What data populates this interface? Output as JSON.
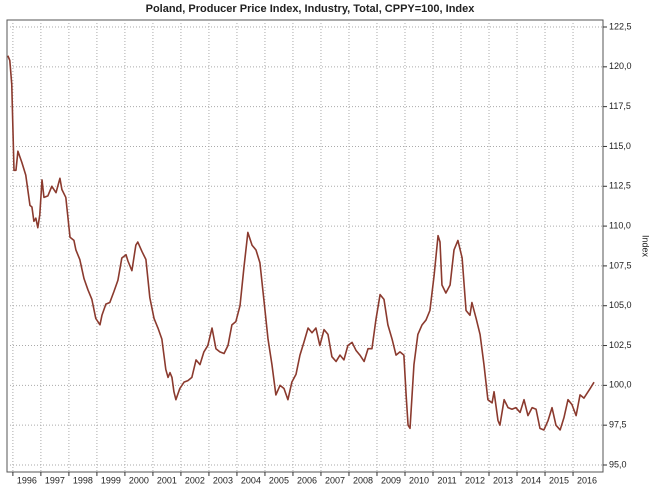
{
  "chart_data": {
    "type": "line",
    "title": "Poland, Producer Price Index, Industry, Total, CPPY=100, Index",
    "y_label": "Index",
    "xlim": [
      1995.79,
      2017.07
    ],
    "ylim": [
      94.56,
      122.94
    ],
    "xticks": [
      1996,
      1997,
      1998,
      1999,
      2000,
      2001,
      2002,
      2003,
      2004,
      2005,
      2006,
      2007,
      2008,
      2009,
      2010,
      2011,
      2012,
      2013,
      2014,
      2015,
      2016
    ],
    "yticks": [
      {
        "value": 95,
        "label": "95,0"
      },
      {
        "value": 97.5,
        "label": "97,5"
      },
      {
        "value": 100,
        "label": "100,0"
      },
      {
        "value": 102.5,
        "label": "102,5"
      },
      {
        "value": 105,
        "label": "105,0"
      },
      {
        "value": 107.5,
        "label": "107,5"
      },
      {
        "value": 110,
        "label": "110,0"
      },
      {
        "value": 112.5,
        "label": "112,5"
      },
      {
        "value": 115,
        "label": "115,0"
      },
      {
        "value": 117.5,
        "label": "117,5"
      },
      {
        "value": 120,
        "label": "120,0"
      },
      {
        "value": 122.5,
        "label": "122,5"
      }
    ],
    "grid": true,
    "series": [
      {
        "color": "#8b3a2e",
        "x": [
          1995.82,
          1995.89,
          1995.96,
          1996.04,
          1996.11,
          1996.18,
          1996.32,
          1996.46,
          1996.61,
          1996.68,
          1996.75,
          1996.82,
          1996.89,
          1996.96,
          1997.04,
          1997.11,
          1997.25,
          1997.39,
          1997.54,
          1997.68,
          1997.75,
          1997.89,
          1998.04,
          1998.18,
          1998.25,
          1998.39,
          1998.54,
          1998.68,
          1998.82,
          1998.96,
          1999.11,
          1999.18,
          1999.32,
          1999.46,
          1999.61,
          1999.75,
          1999.89,
          2000.04,
          2000.11,
          2000.25,
          2000.39,
          2000.46,
          2000.61,
          2000.75,
          2000.89,
          2001.04,
          2001.18,
          2001.32,
          2001.46,
          2001.54,
          2001.61,
          2001.68,
          2001.75,
          2001.82,
          2001.96,
          2002.11,
          2002.25,
          2002.39,
          2002.54,
          2002.68,
          2002.82,
          2002.96,
          2003.11,
          2003.25,
          2003.39,
          2003.54,
          2003.68,
          2003.82,
          2003.96,
          2004.11,
          2004.25,
          2004.39,
          2004.54,
          2004.68,
          2004.82,
          2004.96,
          2005.11,
          2005.25,
          2005.39,
          2005.54,
          2005.68,
          2005.82,
          2005.96,
          2006.11,
          2006.25,
          2006.39,
          2006.54,
          2006.68,
          2006.82,
          2006.96,
          2007.11,
          2007.25,
          2007.39,
          2007.54,
          2007.68,
          2007.82,
          2007.96,
          2008.11,
          2008.25,
          2008.39,
          2008.54,
          2008.68,
          2008.82,
          2008.96,
          2009.11,
          2009.25,
          2009.39,
          2009.54,
          2009.68,
          2009.82,
          2009.96,
          2010.04,
          2010.11,
          2010.18,
          2010.32,
          2010.46,
          2010.61,
          2010.75,
          2010.89,
          2011.04,
          2011.18,
          2011.25,
          2011.32,
          2011.46,
          2011.61,
          2011.75,
          2011.89,
          2012.04,
          2012.18,
          2012.32,
          2012.39,
          2012.54,
          2012.68,
          2012.82,
          2012.96,
          2013.11,
          2013.18,
          2013.32,
          2013.39,
          2013.54,
          2013.68,
          2013.82,
          2013.96,
          2014.11,
          2014.25,
          2014.39,
          2014.54,
          2014.68,
          2014.82,
          2014.96,
          2015.11,
          2015.25,
          2015.39,
          2015.54,
          2015.68,
          2015.82,
          2015.96,
          2016.11,
          2016.25,
          2016.39,
          2016.61,
          2016.75
        ],
        "values": [
          120.7,
          120.4,
          118.9,
          113.5,
          113.5,
          114.7,
          114.0,
          113.2,
          111.3,
          111.2,
          110.3,
          110.5,
          109.9,
          110.7,
          112.9,
          111.8,
          111.9,
          112.5,
          112.1,
          113.0,
          112.3,
          111.8,
          109.3,
          109.1,
          108.5,
          107.9,
          106.7,
          106.0,
          105.4,
          104.2,
          103.8,
          104.4,
          105.1,
          105.2,
          105.9,
          106.6,
          108.0,
          108.2,
          107.8,
          107.2,
          108.8,
          109.0,
          108.4,
          107.9,
          105.5,
          104.2,
          103.6,
          102.9,
          101.0,
          100.5,
          100.8,
          100.5,
          99.6,
          99.1,
          99.8,
          100.2,
          100.3,
          100.5,
          101.6,
          101.3,
          102.1,
          102.5,
          103.6,
          102.3,
          102.1,
          102.0,
          102.5,
          103.8,
          104.0,
          105.0,
          107.4,
          109.6,
          108.8,
          108.5,
          107.7,
          105.4,
          102.9,
          101.3,
          99.4,
          100.0,
          99.8,
          99.1,
          100.2,
          100.7,
          101.9,
          102.7,
          103.6,
          103.3,
          103.6,
          102.5,
          103.5,
          103.2,
          101.8,
          101.5,
          101.9,
          101.6,
          102.5,
          102.7,
          102.2,
          101.9,
          101.5,
          102.3,
          102.3,
          104.1,
          105.7,
          105.4,
          103.8,
          102.9,
          101.9,
          102.1,
          101.9,
          99.4,
          97.5,
          97.3,
          101.3,
          103.2,
          103.8,
          104.1,
          104.7,
          106.9,
          109.4,
          109.0,
          106.3,
          105.8,
          106.3,
          108.5,
          109.1,
          108.0,
          104.7,
          104.4,
          105.2,
          104.2,
          103.2,
          101.3,
          99.1,
          98.9,
          99.6,
          97.8,
          97.5,
          99.1,
          98.6,
          98.5,
          98.6,
          98.3,
          99.1,
          98.1,
          98.6,
          98.5,
          97.3,
          97.2,
          97.8,
          98.6,
          97.5,
          97.2,
          98.0,
          99.1,
          98.8,
          98.1,
          99.4,
          99.2,
          99.8,
          100.2
        ]
      }
    ]
  }
}
